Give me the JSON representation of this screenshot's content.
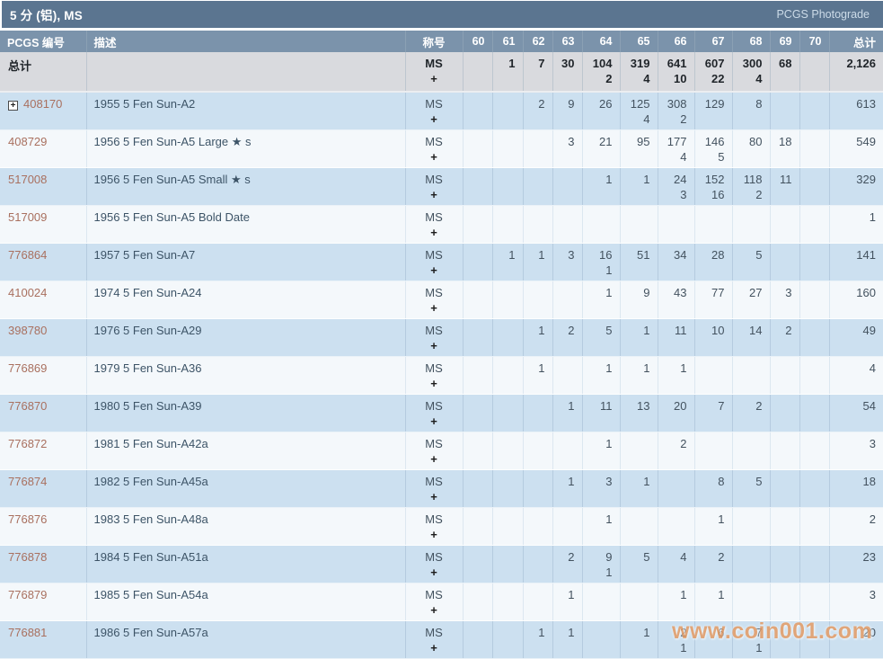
{
  "header": {
    "title": "5 分 (铝), MS",
    "photograde_label": "PCGS Photograde"
  },
  "watermark": {
    "text": "www.coin001.com",
    "color": "#e6975c"
  },
  "colors": {
    "title_bar": "#5b7590",
    "header_row": "#7b93ab",
    "total_row_bg": "#d9dade",
    "row_blue": "#cce0f0",
    "row_white": "#f4f8fb",
    "id_link": "#a9705f"
  },
  "table": {
    "columns": [
      "PCGS 编号",
      "描述",
      "称号",
      "60",
      "61",
      "62",
      "63",
      "64",
      "65",
      "66",
      "67",
      "68",
      "69",
      "70",
      "总计"
    ],
    "designation": {
      "line1": "MS",
      "line2": "+"
    },
    "total_row": {
      "label": "总计",
      "grades": [
        [
          "",
          ""
        ],
        [
          "1",
          ""
        ],
        [
          "7",
          ""
        ],
        [
          "30",
          ""
        ],
        [
          "104",
          "2"
        ],
        [
          "319",
          "4"
        ],
        [
          "641",
          "10"
        ],
        [
          "607",
          "22"
        ],
        [
          "300",
          "4"
        ],
        [
          "68",
          ""
        ],
        [
          "",
          ""
        ]
      ],
      "total": "2,126"
    },
    "rows": [
      {
        "id": "408170",
        "expandable": true,
        "desc": "1955 5 Fen Sun-A2",
        "grades": [
          [
            "",
            ""
          ],
          [
            "",
            ""
          ],
          [
            "2",
            ""
          ],
          [
            "9",
            ""
          ],
          [
            "26",
            ""
          ],
          [
            "125",
            "4"
          ],
          [
            "308",
            "2"
          ],
          [
            "129",
            ""
          ],
          [
            "8",
            ""
          ],
          [
            "",
            ""
          ],
          [
            "",
            ""
          ]
        ],
        "total": "613"
      },
      {
        "id": "408729",
        "expandable": false,
        "desc": "1956 5 Fen Sun-A5 Large ★ s",
        "grades": [
          [
            "",
            ""
          ],
          [
            "",
            ""
          ],
          [
            "",
            ""
          ],
          [
            "3",
            ""
          ],
          [
            "21",
            ""
          ],
          [
            "95",
            ""
          ],
          [
            "177",
            "4"
          ],
          [
            "146",
            "5"
          ],
          [
            "80",
            ""
          ],
          [
            "18",
            ""
          ],
          [
            "",
            ""
          ]
        ],
        "total": "549"
      },
      {
        "id": "517008",
        "expandable": false,
        "desc": "1956 5 Fen Sun-A5 Small ★ s",
        "grades": [
          [
            "",
            ""
          ],
          [
            "",
            ""
          ],
          [
            "",
            ""
          ],
          [
            "",
            ""
          ],
          [
            "1",
            ""
          ],
          [
            "1",
            ""
          ],
          [
            "24",
            "3"
          ],
          [
            "152",
            "16"
          ],
          [
            "118",
            "2"
          ],
          [
            "11",
            ""
          ],
          [
            "",
            ""
          ]
        ],
        "total": "329"
      },
      {
        "id": "517009",
        "expandable": false,
        "desc": "1956 5 Fen Sun-A5 Bold Date",
        "grades": [
          [
            "",
            ""
          ],
          [
            "",
            ""
          ],
          [
            "",
            ""
          ],
          [
            "",
            ""
          ],
          [
            "",
            ""
          ],
          [
            "",
            ""
          ],
          [
            "",
            ""
          ],
          [
            "",
            ""
          ],
          [
            "",
            ""
          ],
          [
            "",
            ""
          ],
          [
            "",
            ""
          ]
        ],
        "total": "1"
      },
      {
        "id": "776864",
        "expandable": false,
        "desc": "1957 5 Fen Sun-A7",
        "grades": [
          [
            "",
            ""
          ],
          [
            "1",
            ""
          ],
          [
            "1",
            ""
          ],
          [
            "3",
            ""
          ],
          [
            "16",
            "1"
          ],
          [
            "51",
            ""
          ],
          [
            "34",
            ""
          ],
          [
            "28",
            ""
          ],
          [
            "5",
            ""
          ],
          [
            "",
            ""
          ],
          [
            "",
            ""
          ]
        ],
        "total": "141"
      },
      {
        "id": "410024",
        "expandable": false,
        "desc": "1974 5 Fen Sun-A24",
        "grades": [
          [
            "",
            ""
          ],
          [
            "",
            ""
          ],
          [
            "",
            ""
          ],
          [
            "",
            ""
          ],
          [
            "1",
            ""
          ],
          [
            "9",
            ""
          ],
          [
            "43",
            ""
          ],
          [
            "77",
            ""
          ],
          [
            "27",
            ""
          ],
          [
            "3",
            ""
          ],
          [
            "",
            ""
          ]
        ],
        "total": "160"
      },
      {
        "id": "398780",
        "expandable": false,
        "desc": "1976 5 Fen Sun-A29",
        "grades": [
          [
            "",
            ""
          ],
          [
            "",
            ""
          ],
          [
            "1",
            ""
          ],
          [
            "2",
            ""
          ],
          [
            "5",
            ""
          ],
          [
            "1",
            ""
          ],
          [
            "11",
            ""
          ],
          [
            "10",
            ""
          ],
          [
            "14",
            ""
          ],
          [
            "2",
            ""
          ],
          [
            "",
            ""
          ]
        ],
        "total": "49"
      },
      {
        "id": "776869",
        "expandable": false,
        "desc": "1979 5 Fen Sun-A36",
        "grades": [
          [
            "",
            ""
          ],
          [
            "",
            ""
          ],
          [
            "1",
            ""
          ],
          [
            "",
            ""
          ],
          [
            "1",
            ""
          ],
          [
            "1",
            ""
          ],
          [
            "1",
            ""
          ],
          [
            "",
            ""
          ],
          [
            "",
            ""
          ],
          [
            "",
            ""
          ],
          [
            "",
            ""
          ]
        ],
        "total": "4"
      },
      {
        "id": "776870",
        "expandable": false,
        "desc": "1980 5 Fen Sun-A39",
        "grades": [
          [
            "",
            ""
          ],
          [
            "",
            ""
          ],
          [
            "",
            ""
          ],
          [
            "1",
            ""
          ],
          [
            "11",
            ""
          ],
          [
            "13",
            ""
          ],
          [
            "20",
            ""
          ],
          [
            "7",
            ""
          ],
          [
            "2",
            ""
          ],
          [
            "",
            ""
          ],
          [
            "",
            ""
          ]
        ],
        "total": "54"
      },
      {
        "id": "776872",
        "expandable": false,
        "desc": "1981 5 Fen Sun-A42a",
        "grades": [
          [
            "",
            ""
          ],
          [
            "",
            ""
          ],
          [
            "",
            ""
          ],
          [
            "",
            ""
          ],
          [
            "1",
            ""
          ],
          [
            "",
            ""
          ],
          [
            "2",
            ""
          ],
          [
            "",
            ""
          ],
          [
            "",
            ""
          ],
          [
            "",
            ""
          ],
          [
            "",
            ""
          ]
        ],
        "total": "3"
      },
      {
        "id": "776874",
        "expandable": false,
        "desc": "1982 5 Fen Sun-A45a",
        "grades": [
          [
            "",
            ""
          ],
          [
            "",
            ""
          ],
          [
            "",
            ""
          ],
          [
            "1",
            ""
          ],
          [
            "3",
            ""
          ],
          [
            "1",
            ""
          ],
          [
            "",
            ""
          ],
          [
            "8",
            ""
          ],
          [
            "5",
            ""
          ],
          [
            "",
            ""
          ],
          [
            "",
            ""
          ]
        ],
        "total": "18"
      },
      {
        "id": "776876",
        "expandable": false,
        "desc": "1983 5 Fen Sun-A48a",
        "grades": [
          [
            "",
            ""
          ],
          [
            "",
            ""
          ],
          [
            "",
            ""
          ],
          [
            "",
            ""
          ],
          [
            "1",
            ""
          ],
          [
            "",
            ""
          ],
          [
            "",
            ""
          ],
          [
            "1",
            ""
          ],
          [
            "",
            ""
          ],
          [
            "",
            ""
          ],
          [
            "",
            ""
          ]
        ],
        "total": "2"
      },
      {
        "id": "776878",
        "expandable": false,
        "desc": "1984 5 Fen Sun-A51a",
        "grades": [
          [
            "",
            ""
          ],
          [
            "",
            ""
          ],
          [
            "",
            ""
          ],
          [
            "2",
            ""
          ],
          [
            "9",
            "1"
          ],
          [
            "5",
            ""
          ],
          [
            "4",
            ""
          ],
          [
            "2",
            ""
          ],
          [
            "",
            ""
          ],
          [
            "",
            ""
          ],
          [
            "",
            ""
          ]
        ],
        "total": "23"
      },
      {
        "id": "776879",
        "expandable": false,
        "desc": "1985 5 Fen Sun-A54a",
        "grades": [
          [
            "",
            ""
          ],
          [
            "",
            ""
          ],
          [
            "",
            ""
          ],
          [
            "1",
            ""
          ],
          [
            "",
            ""
          ],
          [
            "",
            ""
          ],
          [
            "1",
            ""
          ],
          [
            "1",
            ""
          ],
          [
            "",
            ""
          ],
          [
            "",
            ""
          ],
          [
            "",
            ""
          ]
        ],
        "total": "3"
      },
      {
        "id": "776881",
        "expandable": false,
        "desc": "1986 5 Fen Sun-A57a",
        "grades": [
          [
            "",
            ""
          ],
          [
            "",
            ""
          ],
          [
            "1",
            ""
          ],
          [
            "1",
            ""
          ],
          [
            "",
            ""
          ],
          [
            "1",
            ""
          ],
          [
            "2",
            "1"
          ],
          [
            "6",
            ""
          ],
          [
            "7",
            "1"
          ],
          [
            "",
            ""
          ],
          [
            "",
            ""
          ]
        ],
        "total": "20"
      }
    ]
  }
}
